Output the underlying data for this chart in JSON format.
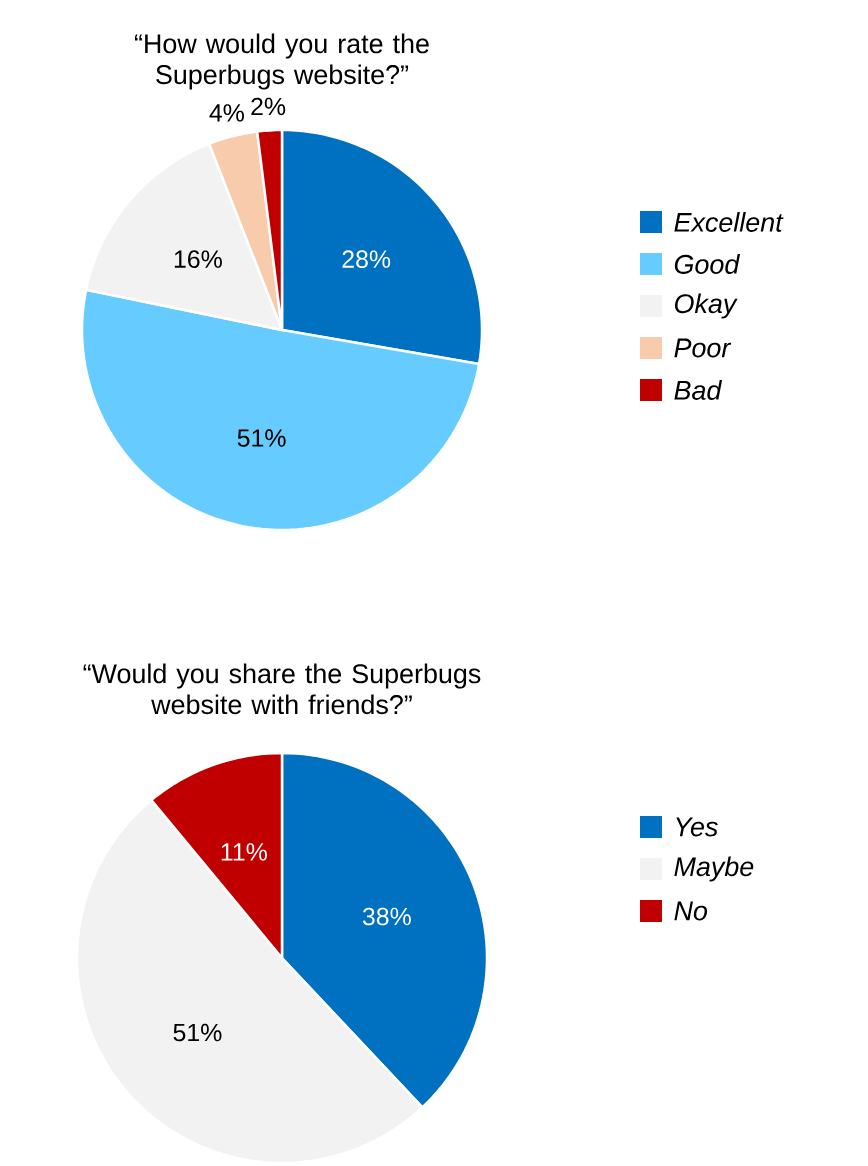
{
  "chart_data": [
    {
      "type": "pie",
      "title": "“How would you rate the Superbugs website?”",
      "categories": [
        "Excellent",
        "Good",
        "Okay",
        "Poor",
        "Bad"
      ],
      "values": [
        28,
        51,
        16,
        4,
        2
      ],
      "value_labels": [
        "28%",
        "51%",
        "16%",
        "4%",
        "2%"
      ],
      "colors": [
        "#0070c0",
        "#66ccff",
        "#f2f2f2",
        "#f8cbad",
        "#c00000"
      ],
      "legend": "right"
    },
    {
      "type": "pie",
      "title": "“Would you share the Superbugs website with friends?”",
      "categories": [
        "Yes",
        "Maybe",
        "No"
      ],
      "values": [
        38,
        51,
        11
      ],
      "value_labels": [
        "38%",
        "51%",
        "11%"
      ],
      "colors": [
        "#0070c0",
        "#f2f2f2",
        "#c00000"
      ],
      "legend": "right"
    }
  ]
}
